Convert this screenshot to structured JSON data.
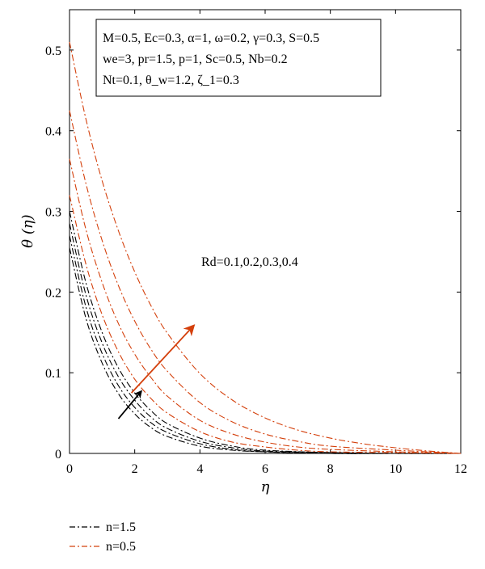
{
  "chart_data": {
    "type": "line",
    "xlabel": "η",
    "ylabel": "θ (η)",
    "xlim": [
      0,
      12
    ],
    "ylim": [
      0,
      0.55
    ],
    "xticks": [
      0,
      2,
      4,
      6,
      8,
      10,
      12
    ],
    "xtick_labels": [
      "0",
      "2",
      "4",
      "6",
      "8",
      "10",
      "12"
    ],
    "yticks": [
      0,
      0.1,
      0.2,
      0.3,
      0.4,
      0.5
    ],
    "ytick_labels": [
      "0",
      "0.1",
      "0.2",
      "0.3",
      "0.4",
      "0.5"
    ],
    "grid": false,
    "parameter_box": [
      "M=0.5, Ec=0.3, α=1, ω=0.2, γ=0.3, S=0.5",
      "we=3, pr=1.5, p=1, Sc=0.5, Nb=0.2",
      "Nt=0.1, θ_w=1.2, ζ_1=0.3"
    ],
    "annotation": "Rd=0.1,0.2,0.3,0.4",
    "legend": [
      {
        "name": "n=1.5",
        "color": "#000000",
        "style": "dash-dot"
      },
      {
        "name": "n=0.5",
        "color": "#d4400c",
        "style": "dash-dot"
      }
    ],
    "series": [
      {
        "group": "n=1.5",
        "Rd": 0.1,
        "color": "#000000",
        "x": [
          0,
          0.5,
          1,
          1.5,
          2,
          2.5,
          3,
          4,
          5,
          6,
          8,
          10,
          12
        ],
        "y": [
          0.255,
          0.168,
          0.112,
          0.074,
          0.049,
          0.032,
          0.021,
          0.009,
          0.004,
          0.002,
          0.0,
          0.0,
          0.0
        ]
      },
      {
        "group": "n=1.5",
        "Rd": 0.2,
        "color": "#000000",
        "x": [
          0,
          0.5,
          1,
          1.5,
          2,
          2.5,
          3,
          4,
          5,
          6,
          8,
          10,
          12
        ],
        "y": [
          0.27,
          0.182,
          0.124,
          0.084,
          0.057,
          0.038,
          0.026,
          0.012,
          0.005,
          0.002,
          0.0,
          0.0,
          0.0
        ]
      },
      {
        "group": "n=1.5",
        "Rd": 0.3,
        "color": "#000000",
        "x": [
          0,
          0.5,
          1,
          1.5,
          2,
          2.5,
          3,
          4,
          5,
          6,
          8,
          10,
          12
        ],
        "y": [
          0.285,
          0.197,
          0.137,
          0.095,
          0.066,
          0.045,
          0.031,
          0.015,
          0.007,
          0.003,
          0.001,
          0.0,
          0.0
        ]
      },
      {
        "group": "n=1.5",
        "Rd": 0.4,
        "color": "#000000",
        "x": [
          0,
          0.5,
          1,
          1.5,
          2,
          2.5,
          3,
          4,
          5,
          6,
          8,
          10,
          12
        ],
        "y": [
          0.3,
          0.212,
          0.15,
          0.106,
          0.075,
          0.053,
          0.037,
          0.019,
          0.009,
          0.004,
          0.001,
          0.0,
          0.0
        ]
      },
      {
        "group": "n=0.5",
        "Rd": 0.1,
        "color": "#d4400c",
        "x": [
          0,
          0.5,
          1,
          1.5,
          2,
          2.5,
          3,
          4,
          5,
          6,
          7,
          8,
          10,
          12
        ],
        "y": [
          0.32,
          0.235,
          0.172,
          0.126,
          0.092,
          0.068,
          0.05,
          0.027,
          0.014,
          0.008,
          0.004,
          0.002,
          0.001,
          0.0
        ]
      },
      {
        "group": "n=0.5",
        "Rd": 0.2,
        "color": "#d4400c",
        "x": [
          0,
          0.5,
          1,
          1.5,
          2,
          2.5,
          3,
          4,
          5,
          6,
          7,
          8,
          10,
          12
        ],
        "y": [
          0.365,
          0.278,
          0.212,
          0.161,
          0.123,
          0.094,
          0.071,
          0.041,
          0.024,
          0.014,
          0.008,
          0.005,
          0.002,
          0.0
        ]
      },
      {
        "group": "n=0.5",
        "Rd": 0.3,
        "color": "#d4400c",
        "x": [
          0,
          0.5,
          1,
          1.5,
          2,
          2.5,
          3,
          4,
          5,
          6,
          7,
          8,
          10,
          12
        ],
        "y": [
          0.425,
          0.335,
          0.264,
          0.208,
          0.164,
          0.129,
          0.102,
          0.063,
          0.039,
          0.024,
          0.015,
          0.009,
          0.004,
          0.0
        ]
      },
      {
        "group": "n=0.5",
        "Rd": 0.4,
        "color": "#d4400c",
        "x": [
          0,
          0.5,
          1,
          1.5,
          2,
          2.5,
          3,
          4,
          5,
          6,
          7,
          8,
          9,
          10,
          11,
          12
        ],
        "y": [
          0.51,
          0.415,
          0.338,
          0.276,
          0.225,
          0.183,
          0.149,
          0.099,
          0.066,
          0.044,
          0.029,
          0.019,
          0.012,
          0.007,
          0.003,
          0.0
        ]
      }
    ],
    "arrows": [
      {
        "color": "#000000",
        "from": [
          1.5,
          0.043
        ],
        "to": [
          2.2,
          0.077
        ]
      },
      {
        "color": "#d4400c",
        "from": [
          1.9,
          0.075
        ],
        "to": [
          3.8,
          0.158
        ]
      }
    ]
  }
}
